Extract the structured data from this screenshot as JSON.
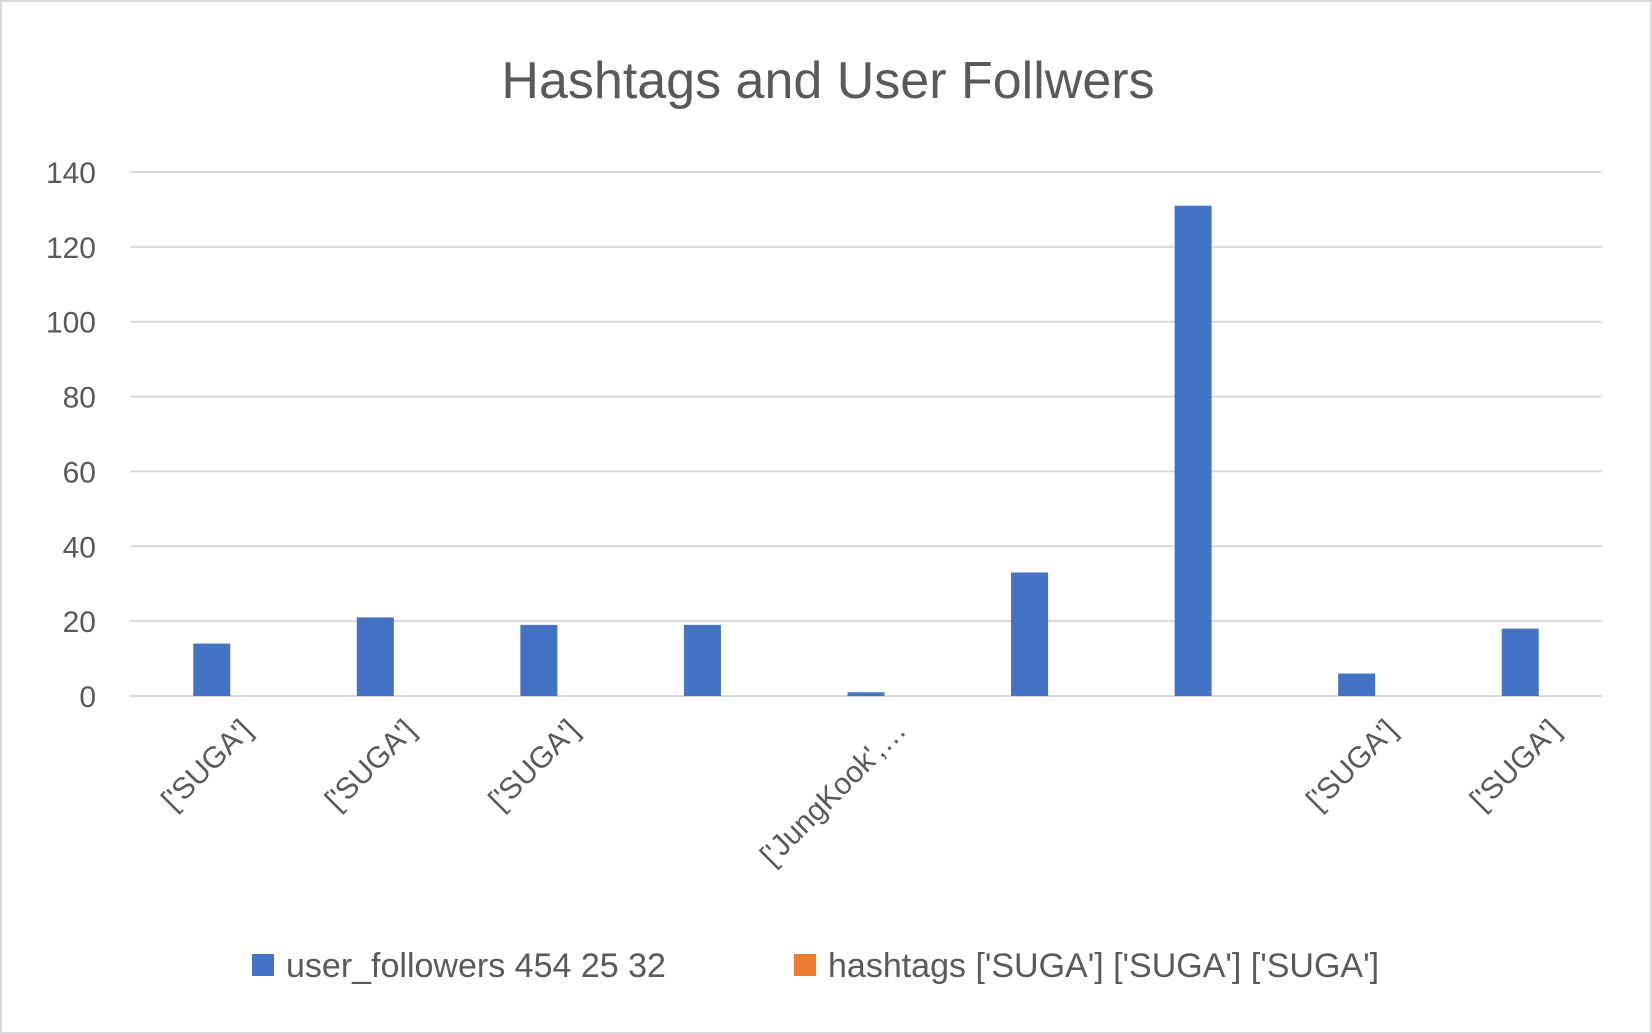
{
  "chart_data": {
    "type": "bar",
    "title": "Hashtags and User Follwers",
    "xlabel": "",
    "ylabel": "",
    "ylim": [
      0,
      140
    ],
    "yticks": [
      0,
      20,
      40,
      60,
      80,
      100,
      120,
      140
    ],
    "grid": true,
    "legend_position": "bottom",
    "categories": [
      "['SUGA']",
      "['SUGA']",
      "['SUGA']",
      "",
      "['JungKook',…",
      "",
      "",
      "['SUGA']",
      "['SUGA']"
    ],
    "series": [
      {
        "name": "user_followers 454 25 32",
        "color": "#4472c4",
        "values": [
          14,
          21,
          19,
          19,
          1,
          33,
          131,
          6,
          18
        ]
      },
      {
        "name": "hashtags ['SUGA'] ['SUGA'] ['SUGA']",
        "color": "#ed7d31",
        "values": [
          0,
          0,
          0,
          0,
          0,
          0,
          0,
          0,
          0
        ]
      }
    ]
  }
}
